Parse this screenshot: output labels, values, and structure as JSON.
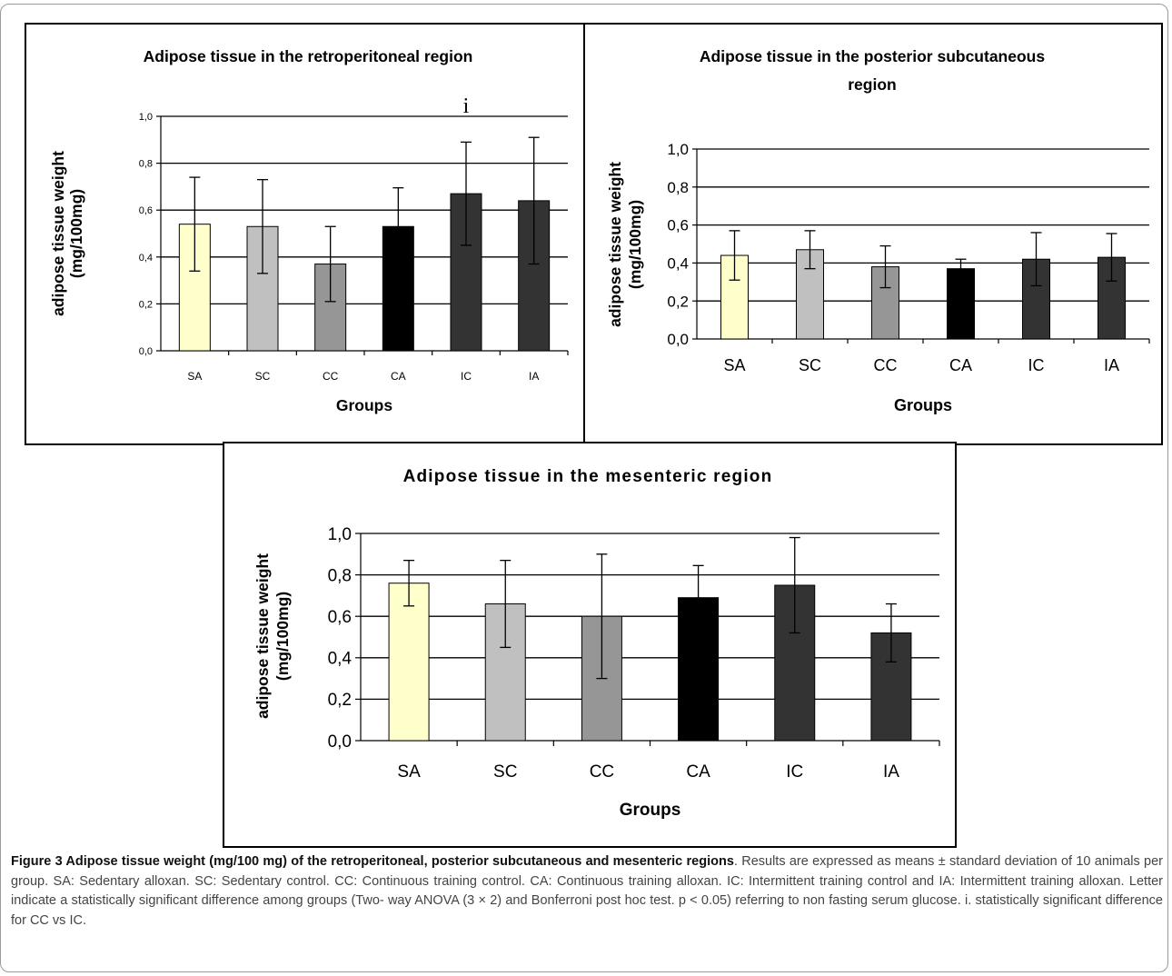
{
  "chart_data": [
    {
      "type": "bar",
      "title": "Adipose tissue in the retroperitoneal region",
      "xlabel": "Groups",
      "ylabel_line1": "adipose tissue weight",
      "ylabel_line2": "(mg/100mg)",
      "ylim": [
        0,
        1.0
      ],
      "yticks": [
        "0,0",
        "0,2",
        "0,4",
        "0,6",
        "0,8",
        "1,0"
      ],
      "grid": true,
      "categories": [
        "SA",
        "SC",
        "CC",
        "CA",
        "IC",
        "IA"
      ],
      "values": [
        0.54,
        0.53,
        0.37,
        0.53,
        0.67,
        0.64
      ],
      "errors": [
        0.2,
        0.2,
        0.16,
        0.165,
        0.22,
        0.27
      ],
      "bar_colors": [
        "#ffffcc",
        "#c0c0c0",
        "#969696",
        "#000000",
        "#333333",
        "#333333"
      ],
      "annotations": [
        {
          "category": "IC",
          "text": "i"
        }
      ]
    },
    {
      "type": "bar",
      "title_line1": "Adipose tissue in the posterior subcutaneous",
      "title_line2": "region",
      "xlabel": "Groups",
      "ylabel_line1": "adipose tissue weight",
      "ylabel_line2": "(mg/100mg)",
      "ylim": [
        0,
        1.0
      ],
      "yticks": [
        "0,0",
        "0,2",
        "0,4",
        "0,6",
        "0,8",
        "1,0"
      ],
      "grid": true,
      "categories": [
        "SA",
        "SC",
        "CC",
        "CA",
        "IC",
        "IA"
      ],
      "values": [
        0.44,
        0.47,
        0.38,
        0.37,
        0.42,
        0.43
      ],
      "errors": [
        0.13,
        0.1,
        0.11,
        0.05,
        0.14,
        0.125
      ],
      "bar_colors": [
        "#ffffcc",
        "#c0c0c0",
        "#969696",
        "#000000",
        "#333333",
        "#333333"
      ]
    },
    {
      "type": "bar",
      "title": "Adipose tissue in the mesenteric region",
      "xlabel": "Groups",
      "ylabel_line1": "adipose tissue weight",
      "ylabel_line2": "(mg/100mg)",
      "ylim": [
        0,
        1.0
      ],
      "yticks": [
        "0,0",
        "0,2",
        "0,4",
        "0,6",
        "0,8",
        "1,0"
      ],
      "grid": true,
      "categories": [
        "SA",
        "SC",
        "CC",
        "CA",
        "IC",
        "IA"
      ],
      "values": [
        0.76,
        0.66,
        0.6,
        0.69,
        0.75,
        0.52
      ],
      "errors": [
        0.11,
        0.21,
        0.3,
        0.155,
        0.23,
        0.14
      ],
      "bar_colors": [
        "#ffffcc",
        "#c0c0c0",
        "#969696",
        "#000000",
        "#333333",
        "#333333"
      ]
    }
  ],
  "caption": {
    "heading": "Figure 3 Adipose tissue weight (mg/100 mg) of the retroperitoneal, posterior subcutaneous and mesenteric regions",
    "body": ". Results are expressed as means ± standard deviation of 10 animals per group. SA: Sedentary alloxan. SC: Sedentary control. CC: Continuous training control. CA: Continuous training alloxan. IC: Intermittent training control and IA: Intermittent training alloxan. Letter indicate a statistically significant difference among groups (Two- way ANOVA (3 × 2) and Bonferroni post hoc test. p < 0.05) referring to non fasting serum glucose. i. statistically significant difference for CC vs IC."
  }
}
